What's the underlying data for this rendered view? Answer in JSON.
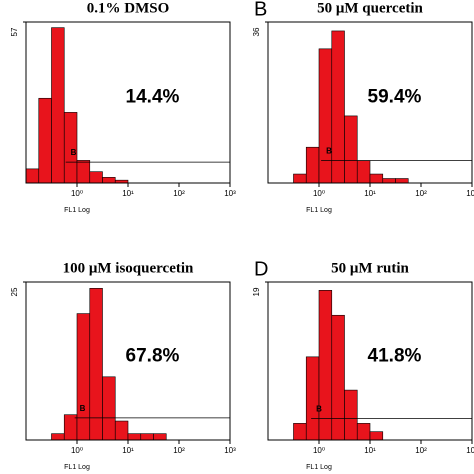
{
  "chart_data": [
    {
      "type": "histogram",
      "title": "0.1% DMSO",
      "xlabel": "FL1 Log",
      "annotation": "14.4%",
      "color": "#e8141c",
      "xscale": "log",
      "bins": [
        0.1,
        0.178,
        0.316,
        0.562,
        1,
        1.78,
        3.16,
        5.62,
        10,
        17.8,
        31.6,
        56.2,
        100,
        178,
        316,
        562,
        1000
      ],
      "counts": [
        5,
        30,
        55,
        25,
        8,
        4,
        2,
        1,
        0,
        0,
        0,
        0,
        0,
        0,
        0,
        0
      ],
      "xlim": [
        0.1,
        1000
      ],
      "xticks": [
        {
          "value": 1,
          "label": "10⁰"
        },
        {
          "value": 10,
          "label": "10¹"
        },
        {
          "value": 100,
          "label": "10²"
        },
        {
          "value": 1000,
          "label": "10³"
        }
      ],
      "ylim": [
        0,
        57
      ],
      "yticks": [
        57
      ],
      "gate": {
        "label": "B",
        "x": [
          0.6,
          1000
        ],
        "y": 7.4
      }
    },
    {
      "type": "histogram",
      "title": "50 μM quercetin",
      "panel_label": "B",
      "xlabel": "FL1 Log",
      "annotation": "59.4%",
      "color": "#e8141c",
      "xscale": "log",
      "bins": [
        0.1,
        0.178,
        0.316,
        0.562,
        1,
        1.78,
        3.16,
        5.62,
        10,
        17.8,
        31.6,
        56.2,
        100,
        178,
        316,
        562,
        1000
      ],
      "counts": [
        0,
        0,
        2,
        8,
        30,
        34,
        15,
        5,
        2,
        1,
        1,
        0,
        0,
        0,
        0,
        0
      ],
      "xlim": [
        0.1,
        1000
      ],
      "xticks": [
        {
          "value": 1,
          "label": "10⁰"
        },
        {
          "value": 10,
          "label": "10¹"
        },
        {
          "value": 100,
          "label": "10²"
        },
        {
          "value": 1000,
          "label": "10³"
        }
      ],
      "ylim": [
        0,
        36
      ],
      "yticks": [
        36
      ],
      "gate": {
        "label": "B",
        "x": [
          1.1,
          1000
        ],
        "y": 5
      }
    },
    {
      "type": "histogram",
      "title": "100 μM isoquercetin",
      "xlabel": "FL1 Log",
      "annotation": "67.8%",
      "color": "#e8141c",
      "xscale": "log",
      "bins": [
        0.1,
        0.178,
        0.316,
        0.562,
        1,
        1.78,
        3.16,
        5.62,
        10,
        17.8,
        31.6,
        56.2,
        100,
        178,
        316,
        562,
        1000
      ],
      "counts": [
        0,
        0,
        1,
        4,
        20,
        24,
        10,
        3,
        1,
        1,
        1,
        0,
        0,
        0,
        0,
        0
      ],
      "xlim": [
        0.1,
        1000
      ],
      "xticks": [
        {
          "value": 1,
          "label": "10⁰"
        },
        {
          "value": 10,
          "label": "10¹"
        },
        {
          "value": 100,
          "label": "10²"
        },
        {
          "value": 1000,
          "label": "10³"
        }
      ],
      "ylim": [
        0,
        25
      ],
      "yticks": [
        25
      ],
      "gate": {
        "label": "B",
        "x": [
          0.9,
          1000
        ],
        "y": 3.5
      }
    },
    {
      "type": "histogram",
      "title": "50 μM rutin",
      "panel_label": "D",
      "xlabel": "FL1 Log",
      "annotation": "41.8%",
      "color": "#e8141c",
      "xscale": "log",
      "bins": [
        0.1,
        0.178,
        0.316,
        0.562,
        1,
        1.78,
        3.16,
        5.62,
        10,
        17.8,
        31.6,
        56.2,
        100,
        178,
        316,
        562,
        1000
      ],
      "counts": [
        0,
        0,
        2,
        10,
        18,
        15,
        6,
        2,
        1,
        0,
        0,
        0,
        0,
        0,
        0,
        0
      ],
      "xlim": [
        0.1,
        1000
      ],
      "xticks": [
        {
          "value": 1,
          "label": "10⁰"
        },
        {
          "value": 10,
          "label": "10¹"
        },
        {
          "value": 100,
          "label": "10²"
        },
        {
          "value": 1000,
          "label": "10³"
        }
      ],
      "ylim": [
        0,
        19
      ],
      "yticks": [
        19
      ],
      "gate": {
        "label": "B",
        "x": [
          0.7,
          1000
        ],
        "y": 2.6
      }
    }
  ]
}
